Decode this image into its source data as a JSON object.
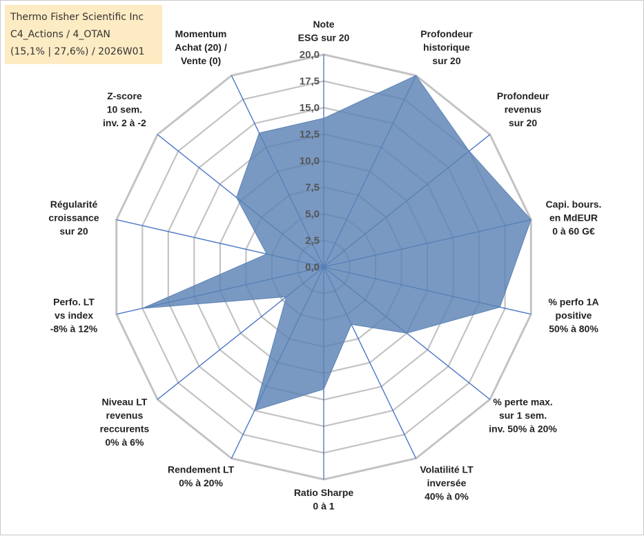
{
  "title_box": {
    "line1": "Thermo Fisher Scientific Inc",
    "line2": "C4_Actions / 4_OTAN",
    "line3": "(15,1% | 27,6%) / 2026W01"
  },
  "colors": {
    "fill": "#5b83b4",
    "axis_line": "#4472c4",
    "grid": "#c3c3c3",
    "title_bg": "#fdebc3"
  },
  "chart_data": {
    "type": "radar",
    "rlim": [
      0,
      20
    ],
    "rticks": [
      "0,0",
      "2,5",
      "5,0",
      "7,5",
      "10,0",
      "12,5",
      "15,0",
      "17,5",
      "20,0"
    ],
    "axes": [
      {
        "label": [
          "Note",
          "ESG sur 20"
        ],
        "value": 14.0
      },
      {
        "label": [
          "Profondeur",
          "historique",
          "sur 20"
        ],
        "value": 20.0
      },
      {
        "label": [
          "Profondeur",
          "revenus",
          "sur 20"
        ],
        "value": 17.5
      },
      {
        "label": [
          "Capi. bours.",
          "en MdEUR",
          "0 à 60 G€"
        ],
        "value": 20.0
      },
      {
        "label": [
          "% perfo 1A",
          "positive",
          "50% à 80%"
        ],
        "value": 17.0
      },
      {
        "label": [
          "% perte max.",
          "sur 1 sem.",
          "inv. 50% à 20%"
        ],
        "value": 10.0
      },
      {
        "label": [
          "Volatilité LT",
          "inversée",
          "40% à 0%"
        ],
        "value": 6.0
      },
      {
        "label": [
          "Ratio Sharpe",
          "0 à 1"
        ],
        "value": 11.5
      },
      {
        "label": [
          "Rendement LT",
          "0% à 20%"
        ],
        "value": 15.0
      },
      {
        "label": [
          "Niveau LT",
          "revenus",
          "reccurents",
          "0% à 6%"
        ],
        "value": 4.5
      },
      {
        "label": [
          "Perfo. LT",
          "vs index",
          "-8% à 12%"
        ],
        "value": 17.5
      },
      {
        "label": [
          "Régularité",
          "croissance",
          "sur 20"
        ],
        "value": 5.5
      },
      {
        "label": [
          "Z-score",
          "10 sem.",
          "inv. 2 à -2"
        ],
        "value": 10.5
      },
      {
        "label": [
          "Momentum",
          "Achat (20) /",
          "Vente (0)"
        ],
        "value": 14.0
      }
    ]
  }
}
